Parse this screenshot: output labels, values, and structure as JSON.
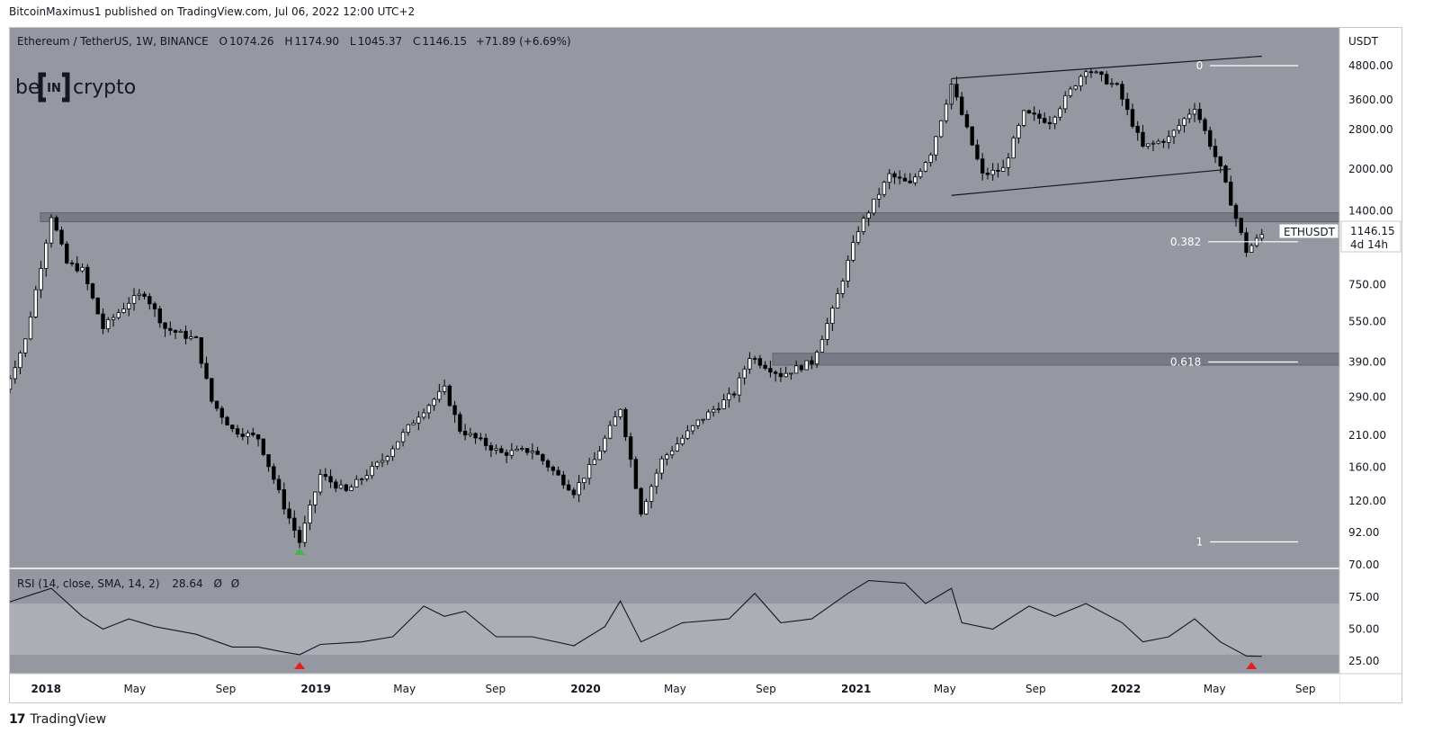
{
  "publisher_line": "BitcoinMaximus1 published on TradingView.com, Jul 06, 2022 12:00 UTC+2",
  "header": {
    "symbol": "Ethereum / TetherUS, 1W, BINANCE",
    "o_label": "O",
    "o": "1074.26",
    "h_label": "H",
    "h": "1174.90",
    "l_label": "L",
    "l": "1045.37",
    "c_label": "C",
    "c": "1146.15",
    "change": "+71.89 (+6.69%)"
  },
  "logo": {
    "left": "be",
    "box": "IN",
    "right": "crypto"
  },
  "axis_unit": "USDT",
  "price_ticks": [
    "4800.00",
    "3600.00",
    "2800.00",
    "2000.00",
    "1400.00",
    "750.00",
    "550.00",
    "390.00",
    "290.00",
    "210.00",
    "160.00",
    "120.00",
    "92.00",
    "70.00"
  ],
  "time_ticks": [
    "2018",
    "May",
    "Sep",
    "2019",
    "May",
    "Sep",
    "2020",
    "May",
    "Sep",
    "2021",
    "May",
    "Sep",
    "2022",
    "May",
    "Sep"
  ],
  "fib_labels": {
    "zero": "0",
    "f382": "0.382",
    "f618": "0.618",
    "one": "1"
  },
  "last_price": {
    "value": "1146.15",
    "countdown": "4d 14h",
    "symbol_tag": "ETHUSDT"
  },
  "rsi": {
    "label": "RSI (14, close, SMA, 14, 2)",
    "value": "28.64",
    "extra1": "Ø",
    "extra2": "Ø",
    "ticks": [
      "75.00",
      "50.00",
      "25.00"
    ]
  },
  "footer_brand": "TradingView",
  "colors": {
    "pane_bg": "#9598a1",
    "rsi_band": "#abaeb5",
    "zone": "#787b86",
    "up_candle": "#ffffff",
    "down_candle": "#000000",
    "bull_arrow": "#4caf50",
    "bear_arrow": "#e02020"
  },
  "chart_data": {
    "type": "candlestick",
    "symbol": "ETHUSDT",
    "timeframe": "1W",
    "y_scale": "log",
    "ylim": [
      70,
      5500
    ],
    "x_range": [
      "2017-11",
      "2022-09"
    ],
    "price_path": [
      [
        "2017-11-06",
        310
      ],
      [
        "2017-12-04",
        470
      ],
      [
        "2018-01-08",
        1350
      ],
      [
        "2018-01-29",
        900
      ],
      [
        "2018-02-19",
        850
      ],
      [
        "2018-03-19",
        520
      ],
      [
        "2018-04-23",
        650
      ],
      [
        "2018-05-14",
        700
      ],
      [
        "2018-06-11",
        520
      ],
      [
        "2018-07-23",
        470
      ],
      [
        "2018-08-13",
        280
      ],
      [
        "2018-09-10",
        220
      ],
      [
        "2018-10-15",
        205
      ],
      [
        "2018-11-19",
        115
      ],
      [
        "2018-12-10",
        85
      ],
      [
        "2019-01-07",
        150
      ],
      [
        "2019-02-11",
        130
      ],
      [
        "2019-04-01",
        170
      ],
      [
        "2019-05-20",
        250
      ],
      [
        "2019-06-24",
        310
      ],
      [
        "2019-07-15",
        220
      ],
      [
        "2019-09-09",
        180
      ],
      [
        "2019-10-21",
        185
      ],
      [
        "2019-12-16",
        130
      ],
      [
        "2020-01-13",
        170
      ],
      [
        "2020-02-17",
        265
      ],
      [
        "2020-03-16",
        110
      ],
      [
        "2020-04-13",
        170
      ],
      [
        "2020-06-01",
        235
      ],
      [
        "2020-07-20",
        300
      ],
      [
        "2020-08-10",
        410
      ],
      [
        "2020-09-21",
        350
      ],
      [
        "2020-11-02",
        390
      ],
      [
        "2020-11-30",
        600
      ],
      [
        "2021-01-04",
        1200
      ],
      [
        "2021-02-15",
        1900
      ],
      [
        "2021-03-15",
        1750
      ],
      [
        "2021-04-12",
        2300
      ],
      [
        "2021-05-10",
        4100
      ],
      [
        "2021-06-21",
        1900
      ],
      [
        "2021-07-19",
        2000
      ],
      [
        "2021-08-16",
        3200
      ],
      [
        "2021-09-20",
        3000
      ],
      [
        "2021-11-08",
        4700
      ],
      [
        "2021-12-20",
        4000
      ],
      [
        "2022-01-24",
        2400
      ],
      [
        "2022-02-28",
        2600
      ],
      [
        "2022-04-04",
        3400
      ],
      [
        "2022-05-09",
        2000
      ],
      [
        "2022-06-13",
        1000
      ],
      [
        "2022-07-04",
        1146.15
      ]
    ],
    "horizontal_zones": [
      [
        1280,
        1380
      ],
      [
        380,
        420
      ]
    ],
    "fibonacci": [
      {
        "level": "0",
        "price": 4800
      },
      {
        "level": "0.382",
        "price": 1080
      },
      {
        "level": "0.618",
        "price": 390
      },
      {
        "level": "1",
        "price": 85
      }
    ],
    "channel": {
      "upper": [
        [
          "2021-05-10",
          4300
        ],
        [
          "2022-07-04",
          5200
        ]
      ],
      "lower": [
        [
          "2021-05-10",
          1600
        ],
        [
          "2022-05-23",
          2000
        ]
      ]
    },
    "markers": [
      {
        "type": "bullish-arrow",
        "pane": "price",
        "date": "2018-12-10"
      },
      {
        "type": "bearish-arrow",
        "pane": "rsi",
        "date": "2018-12-10"
      },
      {
        "type": "bearish-arrow",
        "pane": "rsi",
        "date": "2022-06-20"
      }
    ],
    "rsi_series": {
      "name": "RSI (14, close, SMA, 14, 2)",
      "ylim": [
        15,
        90
      ],
      "band": [
        30,
        70
      ],
      "points": [
        [
          "2017-11-06",
          70
        ],
        [
          "2017-12-18",
          78
        ],
        [
          "2018-01-08",
          82
        ],
        [
          "2018-02-19",
          60
        ],
        [
          "2018-03-19",
          50
        ],
        [
          "2018-04-23",
          58
        ],
        [
          "2018-05-28",
          52
        ],
        [
          "2018-07-23",
          46
        ],
        [
          "2018-09-10",
          36
        ],
        [
          "2018-10-15",
          36
        ],
        [
          "2018-11-19",
          32
        ],
        [
          "2018-12-10",
          30
        ],
        [
          "2019-01-07",
          38
        ],
        [
          "2019-03-04",
          40
        ],
        [
          "2019-04-15",
          44
        ],
        [
          "2019-05-27",
          68
        ],
        [
          "2019-06-24",
          60
        ],
        [
          "2019-07-22",
          64
        ],
        [
          "2019-09-02",
          44
        ],
        [
          "2019-10-21",
          44
        ],
        [
          "2019-12-16",
          37
        ],
        [
          "2020-01-27",
          52
        ],
        [
          "2020-02-17",
          72
        ],
        [
          "2020-03-16",
          40
        ],
        [
          "2020-05-11",
          55
        ],
        [
          "2020-07-13",
          58
        ],
        [
          "2020-08-17",
          78
        ],
        [
          "2020-09-21",
          55
        ],
        [
          "2020-11-02",
          58
        ],
        [
          "2020-12-21",
          78
        ],
        [
          "2021-01-18",
          88
        ],
        [
          "2021-03-08",
          86
        ],
        [
          "2021-04-05",
          70
        ],
        [
          "2021-05-10",
          82
        ],
        [
          "2021-05-24",
          55
        ],
        [
          "2021-07-05",
          50
        ],
        [
          "2021-08-23",
          68
        ],
        [
          "2021-09-27",
          60
        ],
        [
          "2021-11-08",
          70
        ],
        [
          "2021-12-27",
          55
        ],
        [
          "2022-01-24",
          40
        ],
        [
          "2022-02-28",
          44
        ],
        [
          "2022-04-04",
          58
        ],
        [
          "2022-05-09",
          40
        ],
        [
          "2022-06-13",
          29
        ],
        [
          "2022-07-04",
          28.64
        ]
      ]
    }
  }
}
